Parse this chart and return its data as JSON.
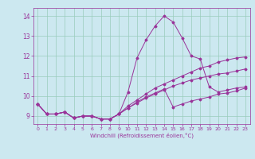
{
  "title": "",
  "xlabel": "Windchill (Refroidissement éolien,°C)",
  "bg_color": "#cce8f0",
  "line_color": "#993399",
  "grid_color": "#99ccbb",
  "xlim": [
    -0.5,
    23.5
  ],
  "ylim": [
    8.6,
    14.4
  ],
  "xticks": [
    0,
    1,
    2,
    3,
    4,
    5,
    6,
    7,
    8,
    9,
    10,
    11,
    12,
    13,
    14,
    15,
    16,
    17,
    18,
    19,
    20,
    21,
    22,
    23
  ],
  "yticks": [
    9,
    10,
    11,
    12,
    13,
    14
  ],
  "line1": [
    9.6,
    9.1,
    9.1,
    9.2,
    8.9,
    9.0,
    9.0,
    8.85,
    8.85,
    9.1,
    10.2,
    11.9,
    12.8,
    13.5,
    14.0,
    13.7,
    12.9,
    12.0,
    11.85,
    10.45,
    10.2,
    10.3,
    10.4,
    10.45
  ],
  "line2": [
    9.6,
    9.1,
    9.1,
    9.2,
    8.9,
    9.0,
    9.0,
    8.85,
    8.85,
    9.1,
    9.4,
    9.7,
    9.95,
    10.15,
    10.35,
    9.45,
    9.6,
    9.75,
    9.85,
    9.95,
    10.1,
    10.15,
    10.25,
    10.4
  ],
  "line3": [
    9.6,
    9.1,
    9.1,
    9.2,
    8.9,
    9.0,
    9.0,
    8.85,
    8.85,
    9.1,
    9.5,
    9.8,
    10.1,
    10.4,
    10.6,
    10.8,
    11.0,
    11.2,
    11.4,
    11.5,
    11.7,
    11.8,
    11.9,
    11.95
  ],
  "line4": [
    9.6,
    9.1,
    9.1,
    9.2,
    8.9,
    9.0,
    9.0,
    8.85,
    8.85,
    9.1,
    9.4,
    9.65,
    9.9,
    10.1,
    10.3,
    10.5,
    10.65,
    10.8,
    10.9,
    11.0,
    11.1,
    11.15,
    11.25,
    11.35
  ]
}
